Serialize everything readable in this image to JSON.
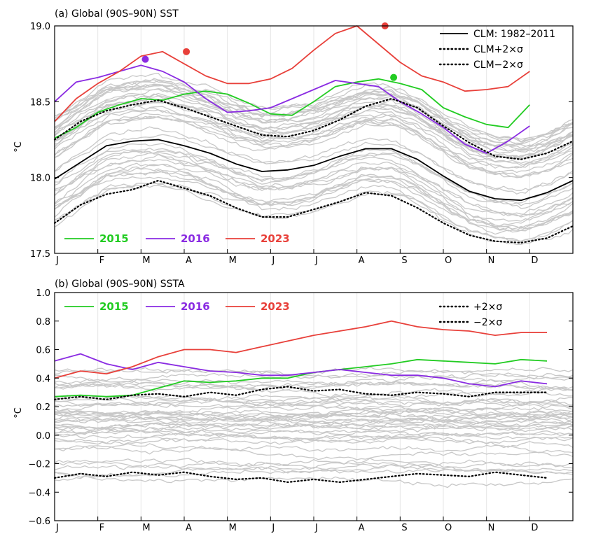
{
  "chart_data": [
    {
      "type": "line",
      "title": "(a) Global (90S–90N) SST",
      "ylabel": "°C",
      "ylim": [
        17.5,
        19.0
      ],
      "yticks": [
        "17.5",
        "18.0",
        "18.5",
        "19.0"
      ],
      "months": [
        "J",
        "F",
        "M",
        "A",
        "M",
        "J",
        "J",
        "A",
        "S",
        "O",
        "N",
        "D"
      ],
      "x_unit": "month of year",
      "background_years": "gray lines (other years)",
      "series": [
        {
          "name": "2015",
          "color": "#22cc22",
          "values": [
            18.26,
            18.33,
            18.43,
            18.48,
            18.52,
            18.51,
            18.55,
            18.57,
            18.55,
            18.49,
            18.42,
            18.41,
            18.5,
            18.6,
            18.63,
            18.65,
            18.62,
            18.58,
            18.46,
            18.4,
            18.35,
            18.33,
            18.48
          ],
          "x": [
            0,
            0.5,
            1,
            1.5,
            2,
            2.5,
            3,
            3.5,
            4,
            4.5,
            5,
            5.5,
            6,
            6.5,
            7,
            7.5,
            8,
            8.5,
            9,
            9.5,
            10,
            10.5,
            11
          ]
        },
        {
          "name": "2016",
          "color": "#8a2be2",
          "values": [
            18.5,
            18.63,
            18.66,
            18.7,
            18.74,
            18.7,
            18.63,
            18.52,
            18.43,
            18.44,
            18.46,
            18.52,
            18.58,
            18.64,
            18.62,
            18.6,
            18.5,
            18.42,
            18.33,
            18.22,
            18.16,
            18.24,
            18.34
          ],
          "x": [
            0,
            0.5,
            1,
            1.5,
            2,
            2.5,
            3,
            3.5,
            4,
            4.5,
            5,
            5.5,
            6,
            6.5,
            7,
            7.5,
            8,
            8.5,
            9,
            9.5,
            10,
            10.5,
            11
          ]
        },
        {
          "name": "2023",
          "color": "#e8403a",
          "values": [
            18.37,
            18.52,
            18.62,
            18.7,
            18.8,
            18.83,
            18.75,
            18.67,
            18.62,
            18.62,
            18.65,
            18.72,
            18.84,
            18.95,
            19.0,
            18.88,
            18.76,
            18.67,
            18.63,
            18.57,
            18.58,
            18.6,
            18.7
          ],
          "x": [
            0,
            0.5,
            1,
            1.5,
            2,
            2.5,
            3,
            3.5,
            4,
            4.5,
            5,
            5.5,
            6,
            6.5,
            7,
            7.5,
            8,
            8.5,
            9,
            9.5,
            10,
            10.5,
            11
          ]
        },
        {
          "name": "CLM: 1982–2011",
          "color": "#000000",
          "style": "solid",
          "values": [
            17.99,
            18.1,
            18.21,
            18.24,
            18.25,
            18.21,
            18.16,
            18.09,
            18.04,
            18.05,
            18.08,
            18.14,
            18.19,
            18.19,
            18.12,
            18.01,
            17.91,
            17.86,
            17.85,
            17.9,
            17.98
          ],
          "x": [
            0,
            0.6,
            1.2,
            1.8,
            2.4,
            3,
            3.6,
            4.2,
            4.8,
            5.4,
            6,
            6.6,
            7.2,
            7.8,
            8.4,
            9,
            9.6,
            10.2,
            10.8,
            11.4,
            12
          ]
        },
        {
          "name": "CLM+2×σ",
          "color": "#000000",
          "style": "dotted",
          "values": [
            18.25,
            18.37,
            18.44,
            18.48,
            18.51,
            18.46,
            18.4,
            18.34,
            18.28,
            18.27,
            18.31,
            18.38,
            18.47,
            18.52,
            18.46,
            18.34,
            18.23,
            18.14,
            18.12,
            18.16,
            18.24
          ],
          "x": [
            0,
            0.6,
            1.2,
            1.8,
            2.4,
            3,
            3.6,
            4.2,
            4.8,
            5.4,
            6,
            6.6,
            7.2,
            7.8,
            8.4,
            9,
            9.6,
            10.2,
            10.8,
            11.4,
            12
          ]
        },
        {
          "name": "CLM−2×σ",
          "color": "#000000",
          "style": "dotted",
          "values": [
            17.7,
            17.82,
            17.89,
            17.92,
            17.98,
            17.93,
            17.88,
            17.8,
            17.74,
            17.74,
            17.79,
            17.84,
            17.9,
            17.88,
            17.8,
            17.7,
            17.62,
            17.58,
            17.57,
            17.6,
            17.68
          ],
          "x": [
            0,
            0.6,
            1.2,
            1.8,
            2.4,
            3,
            3.6,
            4.2,
            4.8,
            5.4,
            6,
            6.6,
            7.2,
            7.8,
            8.4,
            9,
            9.6,
            10.2,
            10.8,
            11.4,
            12
          ]
        }
      ],
      "markers": [
        {
          "series": "2016",
          "x": 2.1,
          "y": 18.78,
          "color": "#8a2be2"
        },
        {
          "series": "2023",
          "x": 3.05,
          "y": 18.83,
          "color": "#e8403a"
        },
        {
          "series": "2023",
          "x": 7.65,
          "y": 19.0,
          "color": "#e8403a"
        },
        {
          "series": "2015",
          "x": 7.85,
          "y": 18.66,
          "color": "#22cc22"
        }
      ],
      "legend": {
        "top_right": [
          "CLM: 1982–2011",
          "CLM+2×σ",
          "CLM−2×σ"
        ],
        "bottom_left": [
          "2015",
          "2016",
          "2023"
        ]
      },
      "grid": "vertical month lines"
    },
    {
      "type": "line",
      "title": "(b) Global (90S–90N) SSTA",
      "ylabel": "°C",
      "ylim": [
        -0.6,
        1.0
      ],
      "yticks": [
        "−0.6",
        "−0.4",
        "−0.2",
        "0.0",
        "0.2",
        "0.4",
        "0.6",
        "0.8",
        "1.0"
      ],
      "months": [
        "J",
        "F",
        "M",
        "A",
        "M",
        "J",
        "J",
        "A",
        "S",
        "O",
        "N",
        "D"
      ],
      "x_unit": "month of year",
      "background_years": "gray lines (other years)",
      "series": [
        {
          "name": "2015",
          "color": "#22cc22",
          "values": [
            0.27,
            0.28,
            0.27,
            0.28,
            0.33,
            0.38,
            0.37,
            0.38,
            0.4,
            0.4,
            0.44,
            0.46,
            0.48,
            0.5,
            0.53,
            0.52,
            0.51,
            0.5,
            0.53,
            0.52
          ],
          "x": [
            0,
            0.6,
            1.2,
            1.8,
            2.4,
            3,
            3.6,
            4.2,
            4.8,
            5.4,
            6,
            6.6,
            7.2,
            7.8,
            8.4,
            9,
            9.6,
            10.2,
            10.8,
            11.4
          ]
        },
        {
          "name": "2016",
          "color": "#8a2be2",
          "values": [
            0.52,
            0.57,
            0.5,
            0.46,
            0.51,
            0.48,
            0.45,
            0.44,
            0.42,
            0.42,
            0.44,
            0.46,
            0.44,
            0.42,
            0.42,
            0.4,
            0.36,
            0.34,
            0.38,
            0.36
          ],
          "x": [
            0,
            0.6,
            1.2,
            1.8,
            2.4,
            3,
            3.6,
            4.2,
            4.8,
            5.4,
            6,
            6.6,
            7.2,
            7.8,
            8.4,
            9,
            9.6,
            10.2,
            10.8,
            11.4
          ]
        },
        {
          "name": "2023",
          "color": "#e8403a",
          "values": [
            0.4,
            0.45,
            0.43,
            0.48,
            0.55,
            0.6,
            0.6,
            0.58,
            0.62,
            0.66,
            0.7,
            0.73,
            0.76,
            0.8,
            0.76,
            0.74,
            0.73,
            0.7,
            0.72,
            0.72
          ],
          "x": [
            0,
            0.6,
            1.2,
            1.8,
            2.4,
            3,
            3.6,
            4.2,
            4.8,
            5.4,
            6,
            6.6,
            7.2,
            7.8,
            8.4,
            9,
            9.6,
            10.2,
            10.8,
            11.4
          ]
        },
        {
          "name": "+2×σ",
          "color": "#000000",
          "style": "dotted",
          "values": [
            0.25,
            0.27,
            0.25,
            0.28,
            0.29,
            0.27,
            0.3,
            0.28,
            0.32,
            0.34,
            0.31,
            0.32,
            0.29,
            0.28,
            0.3,
            0.29,
            0.27,
            0.3,
            0.3,
            0.3
          ],
          "x": [
            0,
            0.6,
            1.2,
            1.8,
            2.4,
            3,
            3.6,
            4.2,
            4.8,
            5.4,
            6,
            6.6,
            7.2,
            7.8,
            8.4,
            9,
            9.6,
            10.2,
            10.8,
            11.4
          ]
        },
        {
          "name": "−2×σ",
          "color": "#000000",
          "style": "dotted",
          "values": [
            -0.3,
            -0.27,
            -0.29,
            -0.26,
            -0.28,
            -0.26,
            -0.29,
            -0.31,
            -0.3,
            -0.33,
            -0.31,
            -0.33,
            -0.31,
            -0.29,
            -0.27,
            -0.28,
            -0.29,
            -0.26,
            -0.28,
            -0.3
          ],
          "x": [
            0,
            0.6,
            1.2,
            1.8,
            2.4,
            3,
            3.6,
            4.2,
            4.8,
            5.4,
            6,
            6.6,
            7.2,
            7.8,
            8.4,
            9,
            9.6,
            10.2,
            10.8,
            11.4
          ]
        }
      ],
      "legend": {
        "top_left": [
          "2015",
          "2016",
          "2023"
        ],
        "top_right": [
          "+2×σ",
          "−2×σ"
        ]
      },
      "grid": "vertical month lines"
    }
  ]
}
